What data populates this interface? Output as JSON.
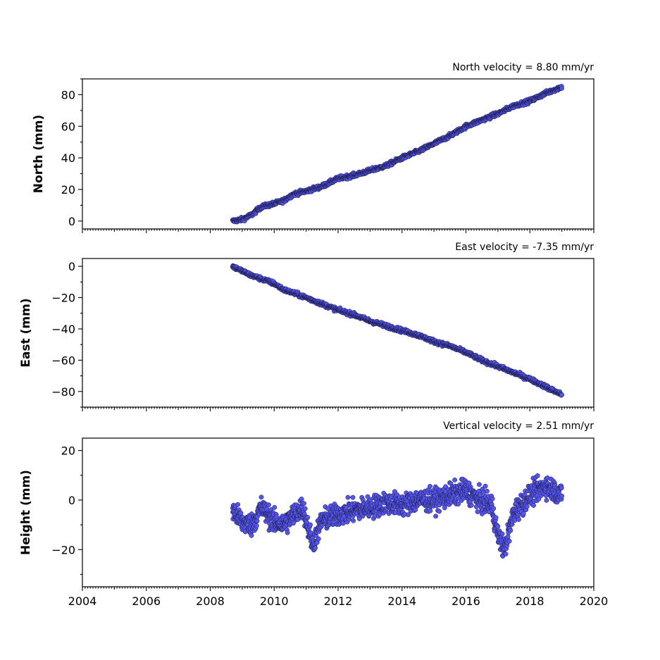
{
  "chart_data": [
    {
      "type": "scatter",
      "title": "North velocity = 8.80 mm/yr",
      "ylabel": "North (mm)",
      "xlim": [
        2004,
        2020
      ],
      "ylim": [
        -5,
        90
      ],
      "yticks": [
        0,
        20,
        40,
        60,
        80
      ],
      "x_tick_labels_visible": false,
      "series": [
        {
          "x": [
            2008.7,
            2009.0,
            2009.3,
            2009.6,
            2010.0,
            2010.3,
            2010.6,
            2011.0,
            2011.5,
            2012.0,
            2012.5,
            2013.0,
            2013.5,
            2014.0,
            2014.5,
            2015.0,
            2015.5,
            2016.0,
            2016.5,
            2017.0,
            2017.5,
            2018.0,
            2018.5,
            2019.0
          ],
          "y": [
            0,
            1,
            4,
            9,
            11,
            13,
            17,
            19,
            22,
            27,
            29,
            32,
            35,
            40,
            44,
            49,
            54,
            60,
            64,
            68,
            73,
            76,
            81,
            85
          ]
        }
      ]
    },
    {
      "type": "scatter",
      "title": "East velocity = -7.35 mm/yr",
      "ylabel": "East (mm)",
      "xlim": [
        2004,
        2020
      ],
      "ylim": [
        -90,
        5
      ],
      "yticks": [
        0,
        -20,
        -40,
        -60,
        -80
      ],
      "x_tick_labels_visible": false,
      "series": [
        {
          "x": [
            2008.7,
            2009.0,
            2009.3,
            2009.6,
            2010.0,
            2010.3,
            2010.6,
            2011.0,
            2011.5,
            2012.0,
            2012.5,
            2013.0,
            2013.5,
            2014.0,
            2014.5,
            2015.0,
            2015.5,
            2016.0,
            2016.5,
            2017.0,
            2017.5,
            2018.0,
            2018.5,
            2019.0
          ],
          "y": [
            0,
            -3,
            -6,
            -8,
            -11,
            -15,
            -17,
            -20,
            -24,
            -28,
            -31,
            -35,
            -38,
            -41,
            -44,
            -48,
            -51,
            -55,
            -60,
            -64,
            -68,
            -72,
            -77,
            -82
          ]
        }
      ]
    },
    {
      "type": "scatter",
      "title": "Vertical velocity = 2.51 mm/yr",
      "ylabel": "Height (mm)",
      "xlim": [
        2004,
        2020
      ],
      "ylim": [
        -35,
        25
      ],
      "yticks": [
        20,
        0,
        -20
      ],
      "x_tick_labels_visible": true,
      "series": [
        {
          "x": [
            2008.7,
            2009.0,
            2009.3,
            2009.6,
            2010.0,
            2010.3,
            2010.6,
            2010.9,
            2011.2,
            2011.5,
            2012.0,
            2012.5,
            2013.0,
            2013.5,
            2014.0,
            2014.5,
            2015.0,
            2015.5,
            2016.0,
            2016.4,
            2016.8,
            2017.0,
            2017.2,
            2017.5,
            2018.0,
            2018.5,
            2019.0
          ],
          "y": [
            -4,
            -9,
            -10,
            -3,
            -9,
            -10,
            -6,
            -3,
            -18,
            -8,
            -6,
            -4,
            -3,
            -1,
            -2,
            0,
            0,
            2,
            4,
            0,
            -2,
            -14,
            -20,
            -5,
            2,
            6,
            2
          ]
        }
      ]
    }
  ],
  "x_tick_labels": [
    "2004",
    "2006",
    "2008",
    "2010",
    "2012",
    "2014",
    "2016",
    "2018",
    "2020"
  ],
  "colors": {
    "marker_fill": "#5555ee",
    "marker_edge": "#1a1a40"
  }
}
